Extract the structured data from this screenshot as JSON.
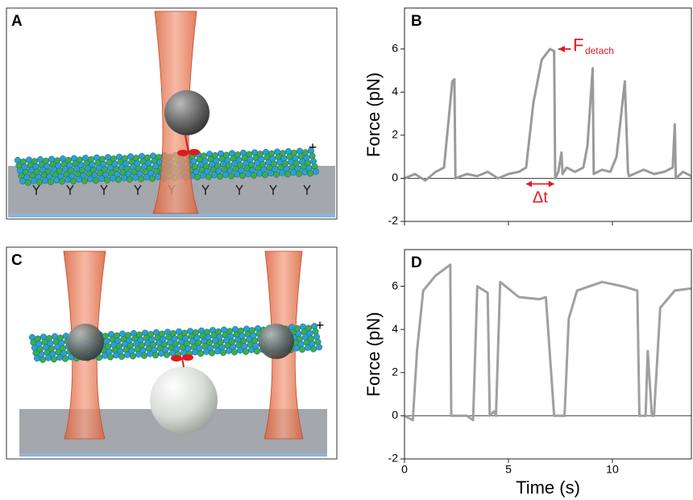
{
  "panels": [
    {
      "label": "A",
      "plus_end": "+"
    },
    {
      "label": "C",
      "plus_end": "+"
    }
  ],
  "chart_data": [
    {
      "type": "line",
      "panel_label": "B",
      "y_label": "Force (pN)",
      "xlim": [
        0,
        13.8
      ],
      "xticks": [
        0,
        5,
        10
      ],
      "show_xtick_labels": false,
      "ylim": [
        -2,
        7.9
      ],
      "yticks": [
        -2,
        0,
        2,
        4,
        6
      ],
      "zero_line": true,
      "annotations": {
        "force_label": "F",
        "force_subscript": "detach",
        "interval_label": "Δt"
      },
      "x": [
        0,
        0.5,
        1,
        1.5,
        1.9,
        2.1,
        2.3,
        2.4,
        2.45,
        3,
        3.5,
        4,
        4.5,
        5,
        5.5,
        5.85,
        6.2,
        6.6,
        7.0,
        7.2,
        7.25,
        7.4,
        7.55,
        7.6,
        7.8,
        8.2,
        8.6,
        8.8,
        9.05,
        9.1,
        9.5,
        9.9,
        10.2,
        10.6,
        10.75,
        10.8,
        11.5,
        12,
        12.5,
        12.9,
        13.0,
        13.05,
        13.4,
        13.8
      ],
      "series": [
        {
          "color": "#9a9a9a",
          "values": [
            0,
            0.2,
            -0.1,
            0.3,
            0.5,
            2.5,
            4.5,
            4.6,
            0,
            0.2,
            0.1,
            0.3,
            0,
            0.2,
            0.3,
            0.5,
            3.5,
            5.5,
            6,
            5.9,
            0,
            0.3,
            1.2,
            0.2,
            0.5,
            0.3,
            0.5,
            1.5,
            5.1,
            0.2,
            0.4,
            0.3,
            1.0,
            4.5,
            0.3,
            0.1,
            0.4,
            0.2,
            0.3,
            0.5,
            2.5,
            0,
            0.3,
            0.1
          ]
        }
      ]
    },
    {
      "type": "line",
      "panel_label": "D",
      "y_label": "Force (pN)",
      "x_label": "Time (s)",
      "xlim": [
        0,
        13.8
      ],
      "xticks": [
        0,
        5,
        10
      ],
      "show_xtick_labels": true,
      "ylim": [
        -2,
        7.7
      ],
      "yticks": [
        -2,
        0,
        2,
        4,
        6
      ],
      "zero_line": true,
      "x": [
        0,
        0.4,
        0.6,
        0.9,
        1.5,
        2.2,
        2.25,
        3.0,
        3.3,
        3.5,
        4.0,
        4.1,
        4.3,
        4.4,
        4.6,
        5.5,
        6.5,
        6.8,
        7.2,
        7.7,
        7.9,
        8.3,
        9.5,
        10.5,
        11.2,
        11.3,
        11.6,
        11.7,
        11.9,
        12.0,
        12.3,
        13.0,
        13.8
      ],
      "series": [
        {
          "color": "#a0a0a0",
          "values": [
            0,
            -0.2,
            3,
            5.8,
            6.5,
            7,
            0,
            0,
            -0.2,
            6,
            5.7,
            0,
            0.2,
            0,
            6.2,
            5.5,
            5.4,
            5.5,
            0,
            0,
            4.5,
            5.8,
            6.2,
            6,
            5.8,
            0,
            0,
            3,
            0,
            0,
            5,
            5.8,
            5.9
          ]
        }
      ]
    }
  ]
}
